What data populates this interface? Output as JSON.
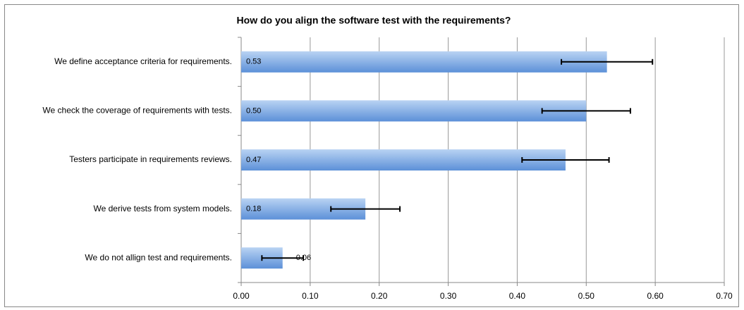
{
  "chart_data": {
    "type": "bar",
    "orientation": "horizontal",
    "title": "How do you align the software test with the requirements?",
    "categories": [
      "We define acceptance criteria for requirements.",
      "We check the coverage of requirements with tests.",
      "Testers participate in requirements reviews.",
      "We derive tests from system models.",
      "We do not allign test and requirements."
    ],
    "values": [
      0.53,
      0.5,
      0.47,
      0.18,
      0.06
    ],
    "value_labels": [
      "0.53",
      "0.50",
      "0.47",
      "0.18",
      "0.06"
    ],
    "errors": [
      0.066,
      0.064,
      0.063,
      0.05,
      0.03
    ],
    "color": "#6a9de0",
    "xlim": [
      0,
      0.7
    ],
    "xticks": [
      {
        "value": 0,
        "label": "0.00"
      },
      {
        "value": 0.1,
        "label": "0.10"
      },
      {
        "value": 0.2,
        "label": "0.20"
      },
      {
        "value": 0.3,
        "label": "0.30"
      },
      {
        "value": 0.4,
        "label": "0.40"
      },
      {
        "value": 0.5,
        "label": "0.50"
      },
      {
        "value": 0.6,
        "label": "0.60"
      },
      {
        "value": 0.7,
        "label": "0.70"
      }
    ],
    "grid": true
  }
}
